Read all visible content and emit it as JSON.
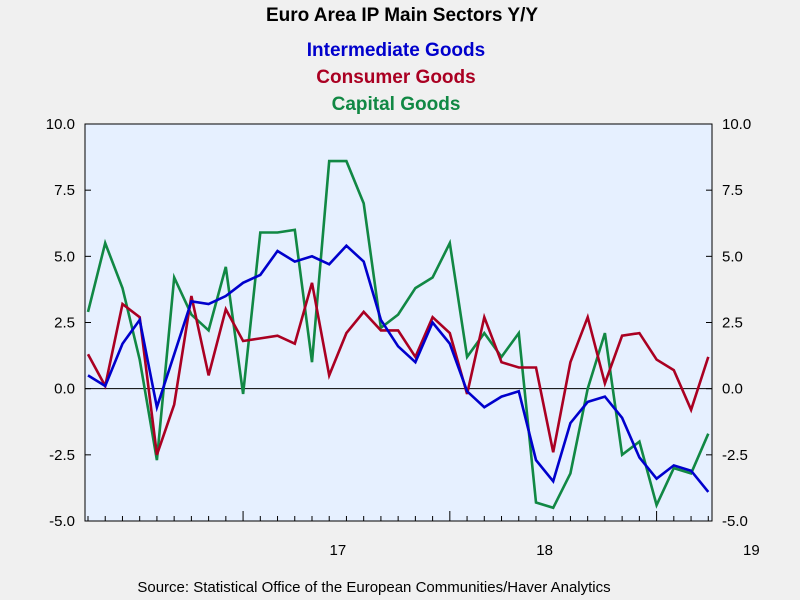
{
  "chart_data": {
    "type": "line",
    "title": "Euro Area IP Main Sectors Y/Y",
    "source": "Source:  Statistical Office of the European Communities/Haver Analytics",
    "xlabel": "",
    "ylabel": "",
    "ylim": [
      -5.0,
      10.0
    ],
    "yticks": [
      10.0,
      7.5,
      5.0,
      2.5,
      0.0,
      -2.5,
      -5.0
    ],
    "ytick_labels": [
      "10.0",
      "7.5",
      "5.0",
      "2.5",
      "0.0",
      "-2.5",
      "-5.0"
    ],
    "x_start": "2016-04",
    "x_label_ticks": [
      {
        "label": "17",
        "index": 9
      },
      {
        "label": "18",
        "index": 21
      },
      {
        "label": "19",
        "index": 33
      }
    ],
    "background_color": "#f0f0f0",
    "plot_background_color": "#e6f0ff",
    "legend_position": "top-center",
    "series": [
      {
        "name": "Intermediate Goods",
        "color": "#0000cc",
        "values": [
          0.5,
          0.1,
          1.7,
          2.6,
          -0.7,
          1.3,
          3.3,
          3.2,
          3.5,
          4.0,
          4.3,
          5.2,
          4.8,
          5.0,
          4.7,
          5.4,
          4.8,
          2.6,
          1.6,
          1.0,
          2.5,
          1.7,
          -0.1,
          -0.7,
          -0.3,
          -0.1,
          -2.7,
          -3.5,
          -1.3,
          -0.5,
          -0.3,
          -1.1,
          -2.6,
          -3.4,
          -2.9,
          -3.1,
          -3.9
        ]
      },
      {
        "name": "Consumer Goods",
        "color": "#aa0022",
        "values": [
          1.3,
          0.1,
          3.2,
          2.7,
          -2.5,
          -0.6,
          3.5,
          0.5,
          3.0,
          1.8,
          1.9,
          2.0,
          1.7,
          4.0,
          0.5,
          2.1,
          2.9,
          2.2,
          2.2,
          1.2,
          2.7,
          2.1,
          -0.2,
          2.7,
          1.0,
          0.8,
          0.8,
          -2.4,
          1.0,
          2.7,
          0.2,
          2.0,
          2.1,
          1.1,
          0.7,
          -0.8,
          1.2
        ]
      },
      {
        "name": "Capital Goods",
        "color": "#118844",
        "values": [
          2.9,
          5.5,
          3.8,
          1.1,
          -2.7,
          4.2,
          2.8,
          2.2,
          4.6,
          -0.2,
          5.9,
          5.9,
          6.0,
          1.0,
          8.6,
          8.6,
          7.0,
          2.3,
          2.8,
          3.8,
          4.2,
          5.5,
          1.2,
          2.1,
          1.2,
          2.1,
          -4.3,
          -4.5,
          -3.2,
          0.0,
          2.1,
          -2.5,
          -2.0,
          -4.4,
          -3.0,
          -3.2,
          -1.7
        ]
      }
    ]
  }
}
